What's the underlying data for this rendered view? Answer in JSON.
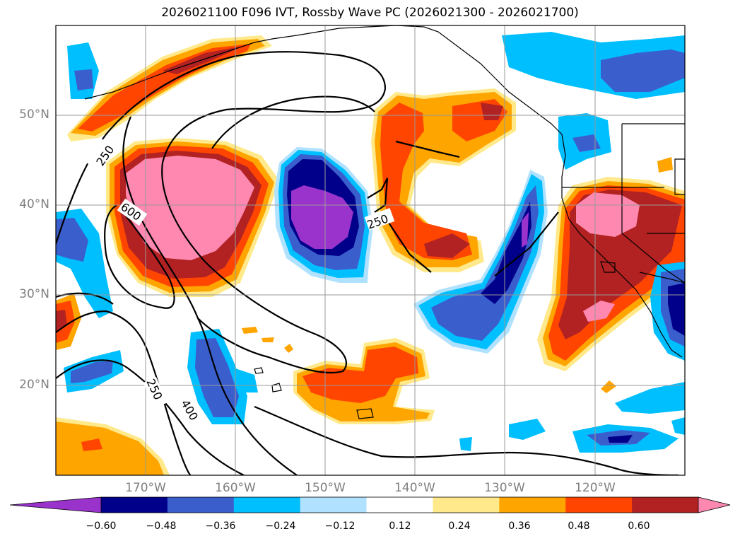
{
  "title": "2026021100 F096 IVT, Rossby Wave PC (2026021300 - 2026021700)",
  "lat_labels": [
    "50°N",
    "40°N",
    "30°N",
    "20°N"
  ],
  "lon_labels": [
    "170°W",
    "160°W",
    "150°W",
    "140°W",
    "130°W",
    "120°W"
  ],
  "contour_labels": [
    "250",
    "600",
    "250",
    "250",
    "400"
  ],
  "colorbar": {
    "ticks": [
      "−0.60",
      "−0.48",
      "−0.36",
      "−0.24",
      "−0.12",
      "0.12",
      "0.24",
      "0.36",
      "0.48",
      "0.60"
    ],
    "colors": [
      "#9933cc",
      "#00008b",
      "#3a5fcd",
      "#00bfff",
      "#b0e2ff",
      "#ffffff",
      "#ffe98a",
      "#ffa500",
      "#ff4500",
      "#b22222",
      "#ff88b0"
    ]
  }
}
